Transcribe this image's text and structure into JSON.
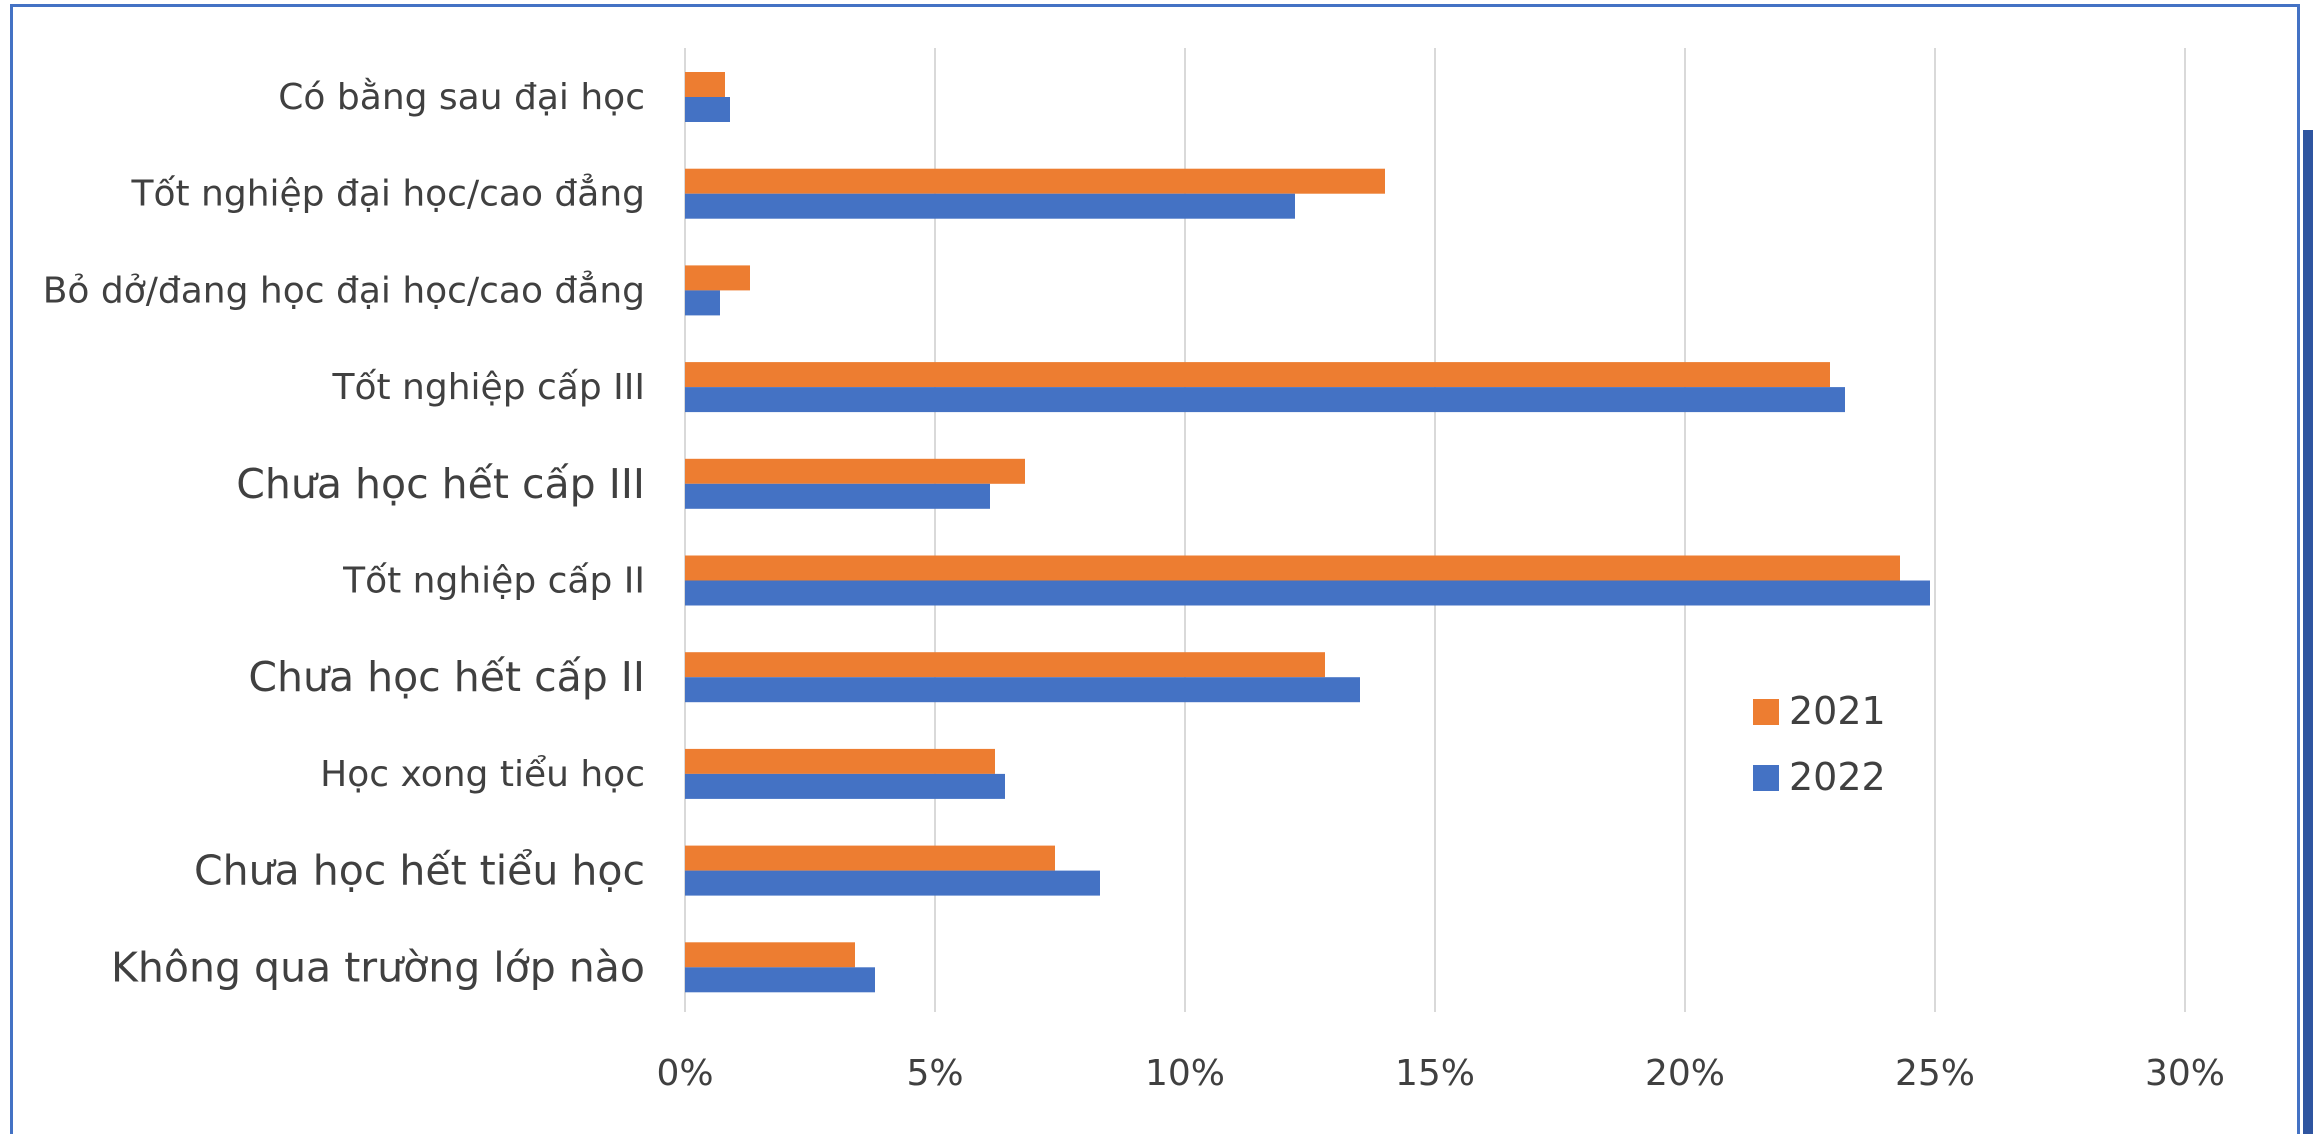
{
  "chart_data": {
    "type": "bar",
    "orientation": "horizontal",
    "categories": [
      "Không qua trường lớp nào",
      "Chưa học hết tiểu học",
      "Học xong tiểu học",
      "Chưa học hết cấp II",
      "Tốt nghiệp cấp II",
      "Chưa học hết cấp III",
      "Tốt nghiệp cấp III",
      "Bỏ dở/đang học đại học/cao đẳng",
      "Tốt nghiệp đại học/cao đẳng",
      "Có bằng sau đại học"
    ],
    "series": [
      {
        "name": "2021",
        "color": "#ED7D31",
        "values": [
          3.4,
          7.4,
          6.2,
          12.8,
          24.3,
          6.8,
          22.9,
          1.3,
          14.0,
          0.8
        ]
      },
      {
        "name": "2022",
        "color": "#4472C4",
        "values": [
          3.8,
          8.3,
          6.4,
          13.5,
          24.9,
          6.1,
          23.2,
          0.7,
          12.2,
          0.9
        ]
      }
    ],
    "xlim": [
      0,
      30
    ],
    "xticks": [
      0,
      5,
      10,
      15,
      20,
      25,
      30
    ],
    "xtick_labels": [
      "0%",
      "5%",
      "10%",
      "15%",
      "20%",
      "25%",
      "30%"
    ],
    "grid": true,
    "legend_position": "right"
  }
}
